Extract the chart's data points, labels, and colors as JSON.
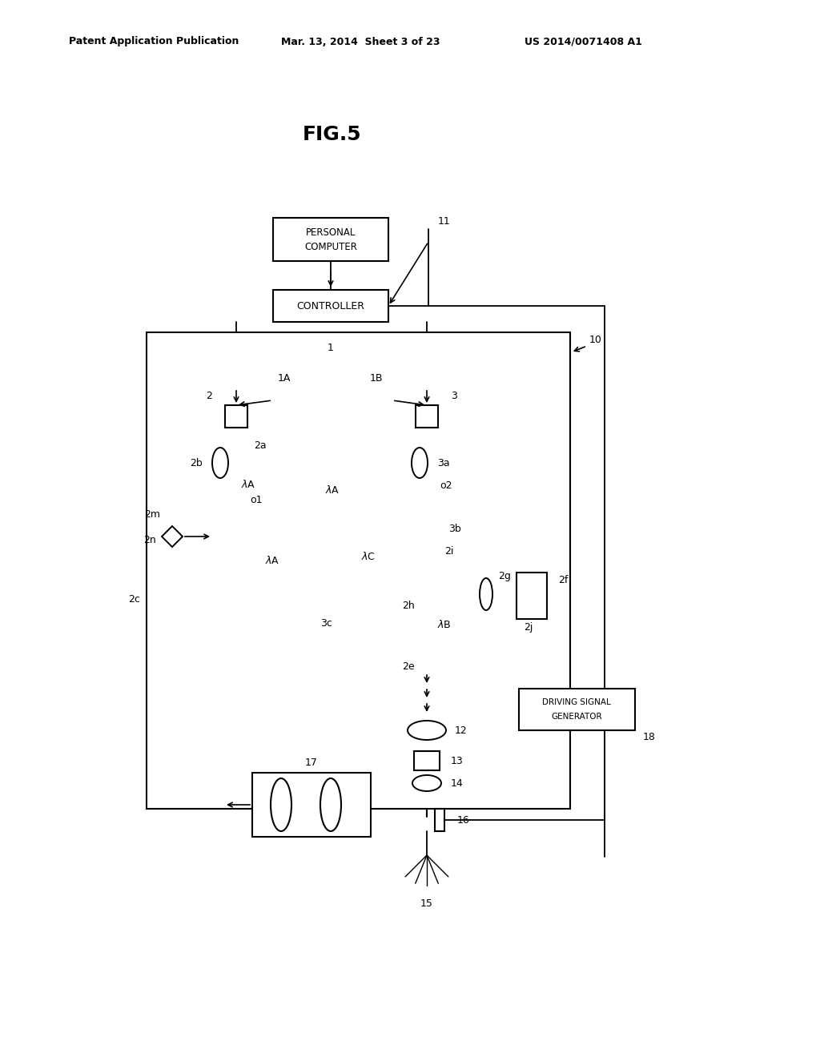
{
  "bg": "#ffffff",
  "lc": "#000000",
  "header_left": "Patent Application Publication",
  "header_mid": "Mar. 13, 2014  Sheet 3 of 23",
  "header_right": "US 2014/0071408 A1",
  "title": "FIG.5"
}
